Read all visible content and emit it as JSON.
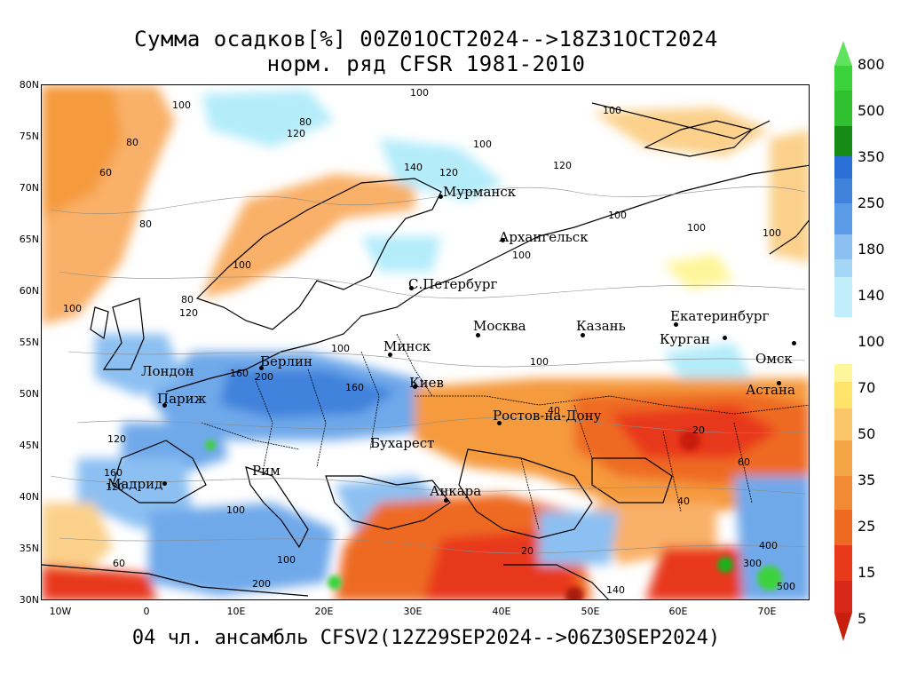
{
  "title": {
    "line1": "Сумма осадков[%] 00Z01OCT2024-->18Z31OCT2024",
    "line2": "норм. ряд CFSR 1981-2010"
  },
  "footer": "04 чл. ансамбль CFSV2(12Z29SEP2024-->06Z30SEP2024)",
  "lat_ticks": [
    "80N",
    "75N",
    "70N",
    "65N",
    "60N",
    "55N",
    "50N",
    "45N",
    "40N",
    "35N",
    "30N"
  ],
  "lon_ticks": [
    "10W",
    "0",
    "10E",
    "20E",
    "30E",
    "40E",
    "50E",
    "60E",
    "70E"
  ],
  "cities": [
    {
      "name": "Мурманск"
    },
    {
      "name": "Архангельск"
    },
    {
      "name": "С.Петербург"
    },
    {
      "name": "Москва"
    },
    {
      "name": "Казань"
    },
    {
      "name": "Екатеринбург"
    },
    {
      "name": "Курган"
    },
    {
      "name": "Омск"
    },
    {
      "name": "Астана"
    },
    {
      "name": "Минск"
    },
    {
      "name": "Берлин"
    },
    {
      "name": "Лондон"
    },
    {
      "name": "Париж"
    },
    {
      "name": "Киев"
    },
    {
      "name": "Ростов-на-Дону"
    },
    {
      "name": "Бухарест"
    },
    {
      "name": "Мадрид"
    },
    {
      "name": "Рим"
    },
    {
      "name": "Анкара"
    }
  ],
  "contour_labels": [
    "100",
    "80",
    "120",
    "60",
    "140",
    "160",
    "200",
    "40",
    "20",
    "300",
    "400",
    "500"
  ],
  "colorbar": {
    "upper": [
      {
        "label": "800",
        "color": "#3cd23c"
      },
      {
        "label": "500",
        "color": "#1fb01f"
      },
      {
        "label": "350",
        "color": "#168c16"
      },
      {
        "label": "250",
        "color": "#2a6fd6"
      },
      {
        "label": "180",
        "color": "#4f95e8"
      },
      {
        "label": "140",
        "color": "#8cc0f2"
      }
    ],
    "upper_extra": [
      {
        "color": "#6fd6f6"
      },
      {
        "color": "#b4ecfa"
      }
    ],
    "mid_label": "100",
    "lower": [
      {
        "label": "70",
        "color": "#fff59a"
      },
      {
        "label": "50",
        "color": "#fbc569"
      },
      {
        "label": "35",
        "color": "#f59a3c"
      },
      {
        "label": "25",
        "color": "#ee6a23"
      },
      {
        "label": "15",
        "color": "#e8391a"
      },
      {
        "label": "5",
        "color": "#c81e0c"
      }
    ],
    "lower_extra": [
      {
        "color": "#ffe36a"
      },
      {
        "color": "#ffb460"
      },
      {
        "color": "#f5922d"
      }
    ]
  }
}
